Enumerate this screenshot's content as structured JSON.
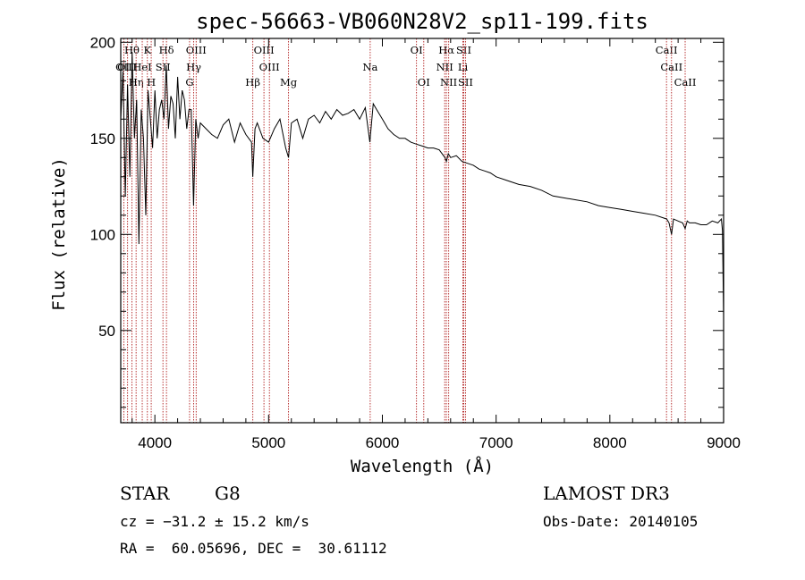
{
  "chart_data": {
    "type": "line",
    "title": "spec-56663-VB060N28V2_sp11-199.fits",
    "xlabel": "Wavelength (Å)",
    "ylabel": "Flux (relative)",
    "xlim": [
      3700,
      9000
    ],
    "ylim": [
      2,
      202
    ],
    "x_ticks": [
      4000,
      5000,
      6000,
      7000,
      8000,
      9000
    ],
    "y_ticks": [
      50,
      100,
      150,
      200
    ],
    "series": [
      {
        "name": "flux",
        "x": [
          3700,
          3720,
          3740,
          3760,
          3780,
          3800,
          3820,
          3840,
          3860,
          3880,
          3900,
          3920,
          3940,
          3960,
          3980,
          4000,
          4020,
          4040,
          4060,
          4080,
          4100,
          4120,
          4140,
          4160,
          4180,
          4200,
          4220,
          4240,
          4260,
          4280,
          4300,
          4320,
          4340,
          4360,
          4380,
          4400,
          4450,
          4500,
          4550,
          4600,
          4650,
          4700,
          4750,
          4800,
          4850,
          4861,
          4880,
          4900,
          4950,
          5000,
          5050,
          5100,
          5150,
          5175,
          5200,
          5250,
          5300,
          5350,
          5400,
          5450,
          5500,
          5550,
          5600,
          5650,
          5700,
          5750,
          5800,
          5850,
          5890,
          5920,
          5950,
          6000,
          6050,
          6100,
          6150,
          6200,
          6250,
          6300,
          6350,
          6400,
          6450,
          6500,
          6550,
          6563,
          6580,
          6600,
          6650,
          6700,
          6750,
          6800,
          6850,
          6900,
          6950,
          7000,
          7100,
          7200,
          7300,
          7400,
          7500,
          7600,
          7700,
          7800,
          7900,
          8000,
          8100,
          8200,
          8300,
          8400,
          8500,
          8520,
          8542,
          8560,
          8600,
          8640,
          8662,
          8680,
          8700,
          8750,
          8800,
          8850,
          8900,
          8950,
          8980,
          8990,
          9000
        ],
        "y": [
          160,
          185,
          120,
          178,
          130,
          195,
          150,
          170,
          95,
          165,
          150,
          110,
          175,
          160,
          145,
          175,
          150,
          165,
          170,
          160,
          188,
          155,
          172,
          168,
          150,
          182,
          160,
          175,
          170,
          155,
          165,
          165,
          115,
          160,
          150,
          158,
          155,
          152,
          150,
          157,
          160,
          148,
          158,
          152,
          148,
          130,
          155,
          158,
          150,
          148,
          155,
          160,
          145,
          140,
          158,
          160,
          150,
          160,
          162,
          158,
          164,
          160,
          165,
          162,
          163,
          165,
          160,
          166,
          148,
          168,
          165,
          160,
          155,
          152,
          150,
          150,
          148,
          147,
          146,
          145,
          145,
          144,
          140,
          138,
          142,
          140,
          141,
          138,
          137,
          136,
          134,
          133,
          132,
          130,
          128,
          126,
          125,
          123,
          120,
          119,
          118,
          117,
          115,
          114,
          113,
          112,
          111,
          110,
          108,
          106,
          100,
          108,
          107,
          106,
          103,
          107,
          106,
          106,
          105,
          105,
          107,
          106,
          108,
          102,
          58
        ]
      }
    ],
    "spectral_lines": [
      {
        "label": "Hθ",
        "wavelength": 3798
      },
      {
        "label": "OII",
        "wavelength": 3727
      },
      {
        "label": "OIII",
        "wavelength": 3760
      },
      {
        "label": "Hη",
        "wavelength": 3835
      },
      {
        "label": "HeI",
        "wavelength": 3889
      },
      {
        "label": "K",
        "wavelength": 3934
      },
      {
        "label": "H",
        "wavelength": 3968
      },
      {
        "label": "SII",
        "wavelength": 4071
      },
      {
        "label": "Hδ",
        "wavelength": 4102
      },
      {
        "label": "OIII",
        "wavelength": 4363
      },
      {
        "label": "Hγ",
        "wavelength": 4341
      },
      {
        "label": "G",
        "wavelength": 4305
      },
      {
        "label": "Hβ",
        "wavelength": 4861
      },
      {
        "label": "OIII",
        "wavelength": 4959
      },
      {
        "label": "OIII",
        "wavelength": 5007
      },
      {
        "label": "Mg",
        "wavelength": 5175
      },
      {
        "label": "Na",
        "wavelength": 5893
      },
      {
        "label": "OI",
        "wavelength": 6300
      },
      {
        "label": "OI",
        "wavelength": 6364
      },
      {
        "label": "Hα",
        "wavelength": 6563
      },
      {
        "label": "NII",
        "wavelength": 6548
      },
      {
        "label": "NII",
        "wavelength": 6583
      },
      {
        "label": "SII",
        "wavelength": 6716
      },
      {
        "label": "Li",
        "wavelength": 6708
      },
      {
        "label": "SII",
        "wavelength": 6731
      },
      {
        "label": "CaII",
        "wavelength": 8498
      },
      {
        "label": "CaII",
        "wavelength": 8542
      },
      {
        "label": "CaII",
        "wavelength": 8662
      }
    ]
  },
  "info": {
    "object_class": "STAR",
    "subclass": "G8",
    "cz_text": "cz = −31.2 ± 15.2 km/s",
    "coord_text": "RA =  60.05696, DEC =  30.61112",
    "survey": "LAMOST DR3",
    "obs_date": "Obs-Date: 20140105"
  },
  "colors": {
    "axis": "#000000",
    "line_markers": "#b22222",
    "spectrum": "#000000"
  }
}
